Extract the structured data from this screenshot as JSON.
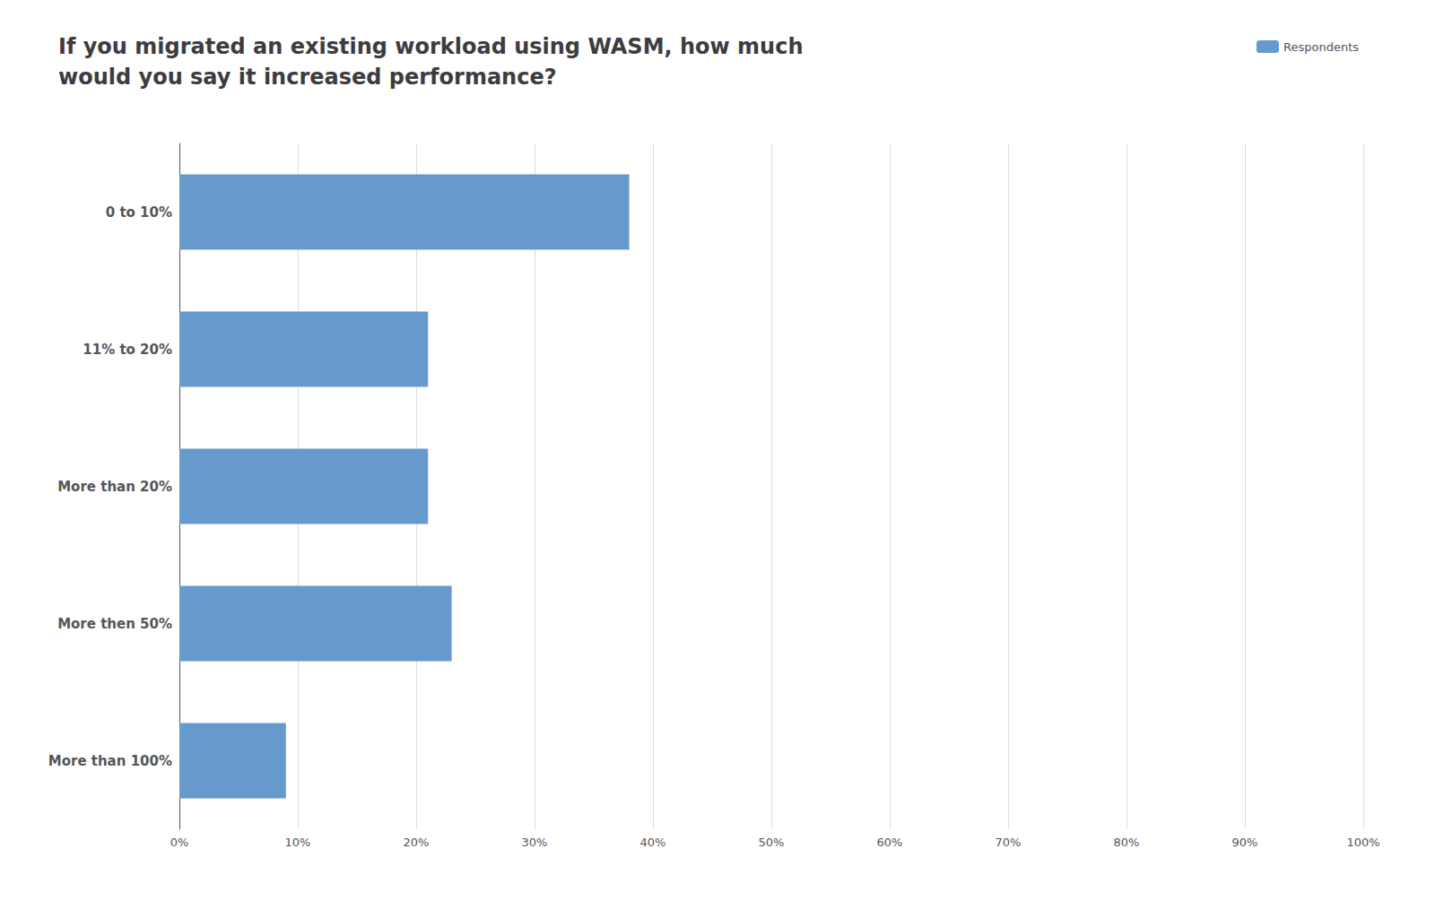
{
  "chart_data": {
    "type": "bar",
    "orientation": "horizontal",
    "title": "If you migrated an existing workload using WASM, how much\nwould you say it increased performance?",
    "categories": [
      "0 to 10%",
      "11% to 20%",
      "More than 20%",
      "More then 50%",
      "More than 100%"
    ],
    "series": [
      {
        "name": "Respondents",
        "color": "#6699cc",
        "values": [
          38,
          21,
          21,
          23,
          9
        ]
      }
    ],
    "xlim": [
      0,
      100
    ],
    "xticks": [
      {
        "value": 0,
        "label": "0%"
      },
      {
        "value": 10,
        "label": "10%"
      },
      {
        "value": 20,
        "label": "20%"
      },
      {
        "value": 30,
        "label": "30%"
      },
      {
        "value": 40,
        "label": "40%"
      },
      {
        "value": 50,
        "label": "50%"
      },
      {
        "value": 60,
        "label": "60%"
      },
      {
        "value": 70,
        "label": "70%"
      },
      {
        "value": 80,
        "label": "80%"
      },
      {
        "value": 90,
        "label": "90%"
      },
      {
        "value": 100,
        "label": "100%"
      }
    ],
    "grid": true,
    "legend": "upper right"
  }
}
